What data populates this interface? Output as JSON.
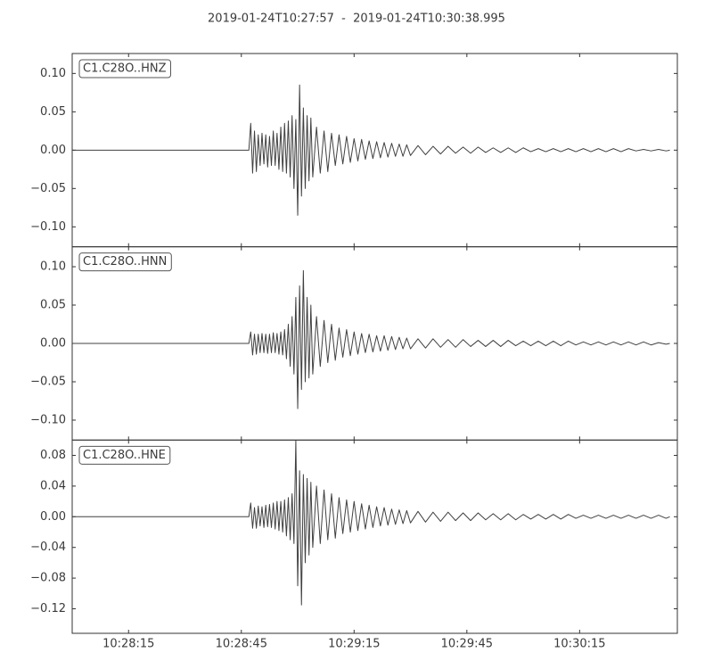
{
  "chart_data": {
    "type": "line",
    "title": "2019-01-24T10:27:57  -  2019-01-24T10:30:38.995",
    "xlim": [
      "10:28:00",
      "10:30:41"
    ],
    "xticks": [
      "10:28:15",
      "10:28:45",
      "10:29:15",
      "10:29:45",
      "10:30:15"
    ],
    "x": [
      "10:27:57",
      "10:28:47",
      "10:28:47.5",
      "10:28:48",
      "10:28:48.5",
      "10:28:49",
      "10:28:49.5",
      "10:28:50",
      "10:28:50.5",
      "10:28:51",
      "10:28:51.5",
      "10:28:52",
      "10:28:52.5",
      "10:28:53",
      "10:28:53.5",
      "10:28:54",
      "10:28:54.5",
      "10:28:55",
      "10:28:55.5",
      "10:28:56",
      "10:28:56.5",
      "10:28:57",
      "10:28:57.5",
      "10:28:58",
      "10:28:58.5",
      "10:28:59",
      "10:28:59.5",
      "10:29:00",
      "10:29:00.5",
      "10:29:01",
      "10:29:01.5",
      "10:29:02",
      "10:29:02.5",
      "10:29:03",
      "10:29:03.5",
      "10:29:04",
      "10:29:05",
      "10:29:06",
      "10:29:07",
      "10:29:08",
      "10:29:09",
      "10:29:10",
      "10:29:11",
      "10:29:12",
      "10:29:13",
      "10:29:14",
      "10:29:15",
      "10:29:16",
      "10:29:17",
      "10:29:18",
      "10:29:19",
      "10:29:20",
      "10:29:21",
      "10:29:22",
      "10:29:23",
      "10:29:24",
      "10:29:25",
      "10:29:26",
      "10:29:27",
      "10:29:28",
      "10:29:29",
      "10:29:30",
      "10:29:32",
      "10:29:34",
      "10:29:36",
      "10:29:38",
      "10:29:40",
      "10:29:42",
      "10:29:44",
      "10:29:46",
      "10:29:48",
      "10:29:50",
      "10:29:52",
      "10:29:54",
      "10:29:56",
      "10:29:58",
      "10:30:00",
      "10:30:02",
      "10:30:04",
      "10:30:06",
      "10:30:08",
      "10:30:10",
      "10:30:12",
      "10:30:14",
      "10:30:16",
      "10:30:18",
      "10:30:20",
      "10:30:22",
      "10:30:24",
      "10:30:26",
      "10:30:28",
      "10:30:30",
      "10:30:32",
      "10:30:34",
      "10:30:36",
      "10:30:38",
      "10:30:38.995"
    ],
    "series": [
      {
        "name": "C1.C28O..HNZ",
        "color": "#404040",
        "ylim": [
          -0.126,
          0.126
        ],
        "yticks": [
          {
            "value": -0.1,
            "label": "−0.10"
          },
          {
            "value": -0.05,
            "label": "−0.05"
          },
          {
            "value": 0,
            "label": "0.00"
          },
          {
            "value": 0.05,
            "label": "0.05"
          },
          {
            "value": 0.1,
            "label": "0.10"
          }
        ],
        "values": [
          0,
          0,
          0.035,
          -0.03,
          0.025,
          -0.028,
          0.02,
          -0.02,
          0.022,
          -0.018,
          0.02,
          -0.022,
          0.018,
          -0.02,
          0.025,
          -0.02,
          0.022,
          -0.025,
          0.03,
          -0.028,
          0.035,
          -0.03,
          0.038,
          -0.035,
          0.045,
          -0.05,
          0.04,
          -0.085,
          0.085,
          -0.06,
          0.055,
          -0.05,
          0.045,
          -0.04,
          0.042,
          -0.035,
          0.03,
          -0.03,
          0.025,
          -0.028,
          0.022,
          -0.02,
          0.02,
          -0.018,
          0.018,
          -0.016,
          0.015,
          -0.014,
          0.014,
          -0.012,
          0.012,
          -0.011,
          0.011,
          -0.01,
          0.01,
          -0.009,
          0.009,
          -0.008,
          0.008,
          -0.008,
          0.007,
          -0.007,
          0.006,
          -0.006,
          0.005,
          -0.005,
          0.005,
          -0.004,
          0.004,
          -0.004,
          0.004,
          -0.003,
          0.003,
          -0.003,
          0.003,
          -0.003,
          0.003,
          -0.002,
          0.002,
          -0.002,
          0.002,
          -0.002,
          0.002,
          -0.002,
          0.002,
          -0.002,
          0.002,
          -0.002,
          0.002,
          -0.002,
          0.002,
          -0.001,
          0.001,
          -0.001,
          0.001,
          -0.001,
          0
        ]
      },
      {
        "name": "C1.C28O..HNN",
        "color": "#404040",
        "ylim": [
          -0.126,
          0.126
        ],
        "yticks": [
          {
            "value": -0.1,
            "label": "−0.10"
          },
          {
            "value": -0.05,
            "label": "−0.05"
          },
          {
            "value": 0,
            "label": "0.00"
          },
          {
            "value": 0.05,
            "label": "0.05"
          },
          {
            "value": 0.1,
            "label": "0.10"
          }
        ],
        "values": [
          0,
          0,
          0.015,
          -0.015,
          0.012,
          -0.014,
          0.012,
          -0.012,
          0.013,
          -0.012,
          0.012,
          -0.013,
          0.012,
          -0.012,
          0.014,
          -0.012,
          0.013,
          -0.014,
          0.015,
          -0.015,
          0.018,
          -0.02,
          0.025,
          -0.03,
          0.035,
          -0.04,
          0.06,
          -0.085,
          0.075,
          -0.06,
          0.095,
          -0.05,
          0.06,
          -0.045,
          0.05,
          -0.04,
          0.035,
          -0.03,
          0.03,
          -0.025,
          0.025,
          -0.022,
          0.02,
          -0.018,
          0.018,
          -0.016,
          0.015,
          -0.014,
          0.013,
          -0.012,
          0.012,
          -0.011,
          0.01,
          -0.01,
          0.01,
          -0.009,
          0.009,
          -0.008,
          0.008,
          -0.007,
          0.007,
          -0.007,
          0.006,
          -0.006,
          0.006,
          -0.005,
          0.005,
          -0.005,
          0.005,
          -0.004,
          0.004,
          -0.004,
          0.004,
          -0.004,
          0.004,
          -0.003,
          0.003,
          -0.003,
          0.003,
          -0.003,
          0.003,
          -0.003,
          0.003,
          -0.002,
          0.002,
          -0.002,
          0.002,
          -0.002,
          0.002,
          -0.002,
          0.002,
          -0.002,
          0.002,
          -0.002,
          0.001,
          -0.001,
          0
        ]
      },
      {
        "name": "C1.C28O..HNE",
        "color": "#404040",
        "ylim": [
          -0.152,
          0.1
        ],
        "yticks": [
          {
            "value": -0.12,
            "label": "−0.12"
          },
          {
            "value": -0.08,
            "label": "−0.08"
          },
          {
            "value": -0.04,
            "label": "−0.04"
          },
          {
            "value": 0,
            "label": "0.00"
          },
          {
            "value": 0.04,
            "label": "0.04"
          },
          {
            "value": 0.08,
            "label": "0.08"
          }
        ],
        "values": [
          0,
          0,
          0.018,
          -0.015,
          0.012,
          -0.015,
          0.014,
          -0.012,
          0.013,
          -0.014,
          0.015,
          -0.013,
          0.016,
          -0.014,
          0.018,
          -0.016,
          0.02,
          -0.018,
          0.02,
          -0.02,
          0.022,
          -0.025,
          0.025,
          -0.03,
          0.03,
          -0.035,
          0.1,
          -0.09,
          0.06,
          -0.115,
          0.055,
          -0.06,
          0.05,
          -0.05,
          0.045,
          -0.04,
          0.04,
          -0.035,
          0.035,
          -0.03,
          0.03,
          -0.028,
          0.025,
          -0.022,
          0.022,
          -0.02,
          0.02,
          -0.018,
          0.017,
          -0.016,
          0.015,
          -0.014,
          0.013,
          -0.012,
          0.012,
          -0.011,
          0.01,
          -0.01,
          0.009,
          -0.009,
          0.008,
          -0.008,
          0.007,
          -0.007,
          0.006,
          -0.006,
          0.006,
          -0.005,
          0.005,
          -0.005,
          0.005,
          -0.004,
          0.004,
          -0.004,
          0.004,
          -0.004,
          0.003,
          -0.003,
          0.003,
          -0.003,
          0.003,
          -0.003,
          0.003,
          -0.002,
          0.002,
          -0.002,
          0.002,
          -0.002,
          0.002,
          -0.002,
          0.002,
          -0.002,
          0.002,
          -0.002,
          0.002,
          -0.002,
          0
        ]
      }
    ]
  }
}
